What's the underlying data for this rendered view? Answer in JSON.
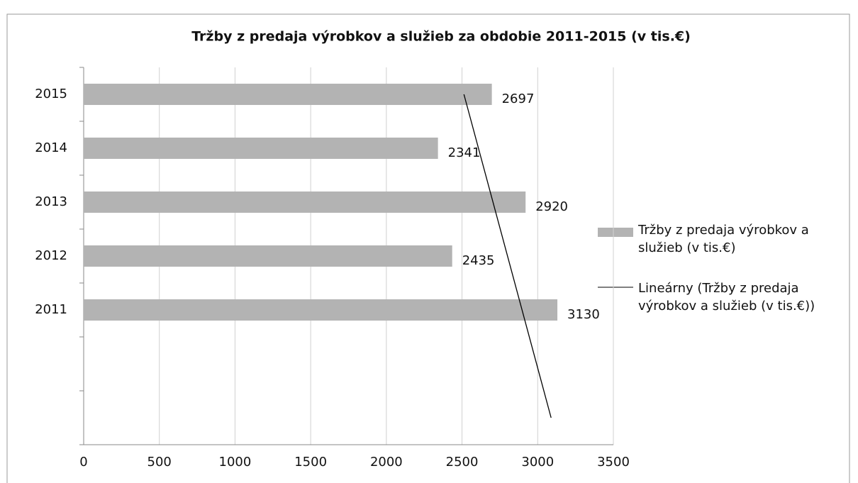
{
  "chart_data": {
    "type": "bar",
    "orientation": "horizontal",
    "title": "Tržby z predaja výrobkov a služieb za obdobie 2011-2015 (v tis.€)",
    "categories": [
      "2015",
      "2014",
      "2013",
      "2012",
      "2011",
      null,
      null
    ],
    "series": [
      {
        "name": "Tržby z predaja výrobkov a služieb (v tis.€)",
        "color": "#b3b3b3",
        "values": [
          2697,
          2341,
          2920,
          2435,
          3130,
          null,
          null
        ]
      }
    ],
    "trendline": {
      "type": "linear",
      "name": "Lineárny (Tržby z predaja výrobkov a služieb (v tis.€))",
      "color": "#000000"
    },
    "xlim": [
      0,
      3500
    ],
    "xticks": [
      0,
      500,
      1000,
      1500,
      2000,
      2500,
      3000,
      3500
    ],
    "grid": true,
    "legend": "right"
  }
}
